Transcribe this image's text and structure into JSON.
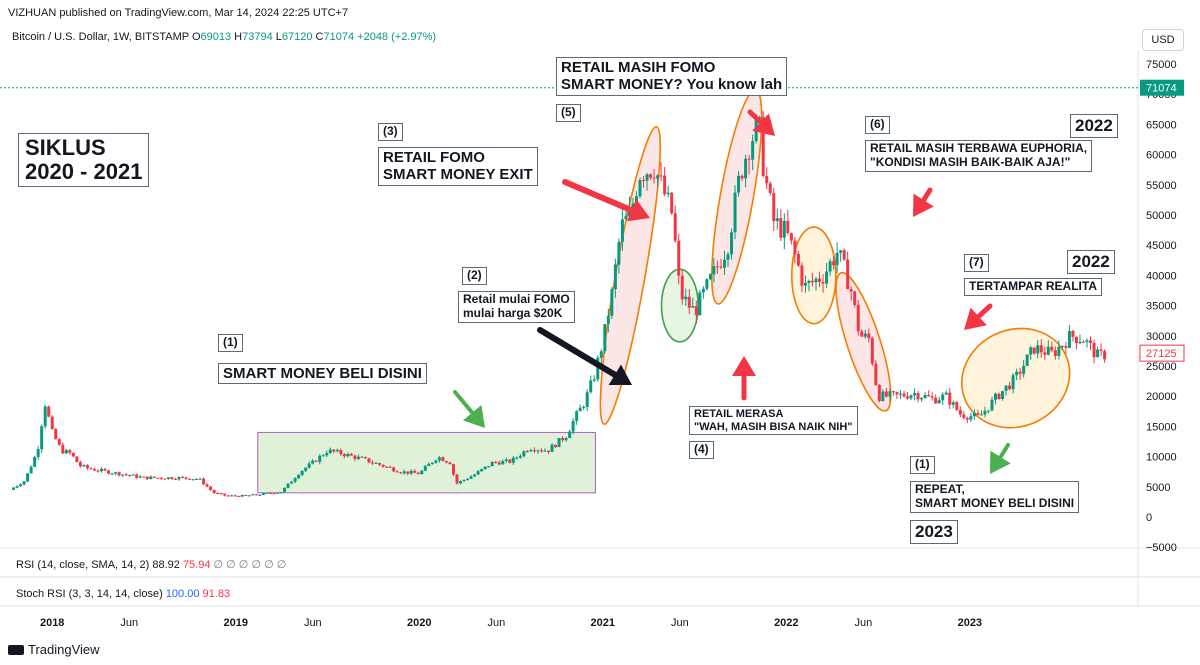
{
  "header": {
    "published": "VIZHUAN published on TradingView.com, Mar 14, 2024 22:25 UTC+7"
  },
  "legend": {
    "symbol": "Bitcoin / U.S. Dollar, 1W, BITSTAMP",
    "o_label": "O",
    "o": "69013",
    "h_label": "H",
    "h": "73794",
    "l_label": "L",
    "l": "67120",
    "c_label": "C",
    "c": "71074",
    "change": "+2048 (+2.97%)"
  },
  "currency": "USD",
  "price_labels": {
    "current": "71074",
    "last": "27125"
  },
  "indicators": {
    "rsi": {
      "label": "RSI (14, close, SMA, 14, 2)",
      "v1": "88.92",
      "v2": "75.94",
      "empties": "∅ ∅ ∅ ∅ ∅ ∅"
    },
    "stoch": {
      "label": "Stoch RSI (3, 3, 14, 14, close)",
      "v1": "100.00",
      "v2": "91.83"
    }
  },
  "footer": {
    "brand": "TradingView"
  },
  "annotations": {
    "siklus": "SIKLUS\n2020 - 2021",
    "n1": "(1)",
    "smart_money": "SMART MONEY BELI DISINI",
    "n2": "(2)",
    "retail_mulai": "Retail mulai FOMO\nmulai harga $20K",
    "n3": "(3)",
    "retail_fomo": "RETAIL FOMO\nSMART MONEY EXIT",
    "n4": "(4)",
    "retail_merasa": "RETAIL MERASA\n\"WAH, MASIH BISA NAIK NIH\"",
    "n5": "(5)",
    "retail_masih": "RETAIL MASIH FOMO\nSMART MONEY? You know lah",
    "n6": "(6)",
    "euphoria": "RETAIL MASIH TERBAWA EUPHORIA,\n\"KONDISI MASIH BAIK-BAIK AJA!\"",
    "y2022a": "2022",
    "n7": "(7)",
    "tertampar": "TERTAMPAR REALITA",
    "y2022b": "2022",
    "n1b": "(1)",
    "repeat": "REPEAT,\nSMART MONEY BELI DISINI",
    "y2023": "2023"
  },
  "chart_data": {
    "type": "candlestick",
    "title": "Bitcoin / U.S. Dollar, 1W, BITSTAMP",
    "ylabel": "USD",
    "ylim": [
      -5000,
      78000
    ],
    "y_ticks": [
      "75000",
      "70000",
      "65000",
      "60000",
      "55000",
      "50000",
      "45000",
      "40000",
      "35000",
      "30000",
      "25000",
      "20000",
      "15000",
      "10000",
      "5000",
      "0",
      "−5000"
    ],
    "x_ticks": [
      "2018",
      "Jun",
      "2019",
      "Jun",
      "2020",
      "Jun",
      "2021",
      "Jun",
      "2022",
      "Jun",
      "2023"
    ],
    "x_tick_years": [
      2018,
      2018.42,
      2019,
      2019.42,
      2020,
      2020.42,
      2021,
      2021.42,
      2022,
      2022.42,
      2023
    ],
    "x_range": [
      2017.77,
      2023.9
    ],
    "price_path": {
      "t": [
        2017.77,
        2017.85,
        2017.92,
        2017.96,
        2018.0,
        2018.05,
        2018.1,
        2018.15,
        2018.2,
        2018.3,
        2018.4,
        2018.5,
        2018.6,
        2018.7,
        2018.8,
        2018.88,
        2018.95,
        2019.05,
        2019.15,
        2019.25,
        2019.35,
        2019.42,
        2019.5,
        2019.58,
        2019.7,
        2019.8,
        2019.9,
        2020.0,
        2020.1,
        2020.17,
        2020.2,
        2020.3,
        2020.4,
        2020.5,
        2020.6,
        2020.7,
        2020.8,
        2020.85,
        2020.9,
        2020.95,
        2021.0,
        2021.05,
        2021.1,
        2021.15,
        2021.2,
        2021.28,
        2021.33,
        2021.38,
        2021.42,
        2021.47,
        2021.5,
        2021.55,
        2021.6,
        2021.68,
        2021.75,
        2021.8,
        2021.85,
        2021.88,
        2021.93,
        2022.0,
        2022.05,
        2022.1,
        2022.2,
        2022.28,
        2022.35,
        2022.4,
        2022.45,
        2022.5,
        2022.6,
        2022.7,
        2022.8,
        2022.87,
        2022.95,
        2023.05,
        2023.15,
        2023.25,
        2023.35,
        2023.45,
        2023.55,
        2023.62,
        2023.7,
        2023.75
      ],
      "p": [
        4500,
        6000,
        11000,
        19000,
        14000,
        11000,
        10500,
        8500,
        8000,
        7500,
        7000,
        6500,
        6500,
        6500,
        6300,
        4000,
        3500,
        3500,
        3800,
        4200,
        7500,
        9000,
        11000,
        10500,
        9500,
        8500,
        7500,
        7200,
        10000,
        9000,
        5500,
        7000,
        9000,
        9200,
        11500,
        11000,
        13500,
        16500,
        19000,
        23000,
        29000,
        37000,
        48000,
        50000,
        57000,
        58000,
        54000,
        50000,
        37000,
        35000,
        34000,
        37000,
        40000,
        45000,
        57000,
        62000,
        65000,
        57000,
        49000,
        47000,
        43000,
        38000,
        40000,
        44000,
        38000,
        30000,
        29500,
        20000,
        20000,
        20500,
        19500,
        20000,
        17000,
        16500,
        20000,
        23000,
        28000,
        27000,
        30000,
        29500,
        26500,
        27125
      ]
    },
    "boxes": [
      {
        "label": "accumulation",
        "x0": 2019.12,
        "x1": 2020.96,
        "y0": 4000,
        "y1": 14000
      }
    ],
    "ellipses": [
      {
        "cx": 2021.15,
        "cy": 40000,
        "rx": 0.08,
        "ry": 25000,
        "fill": "#fde2e2",
        "stroke": "#f57c00"
      },
      {
        "cx": 2021.42,
        "cy": 35000,
        "rx": 0.1,
        "ry": 6000,
        "fill": "#e3f3e1",
        "stroke": "#43a047"
      },
      {
        "cx": 2021.73,
        "cy": 53000,
        "rx": 0.09,
        "ry": 18000,
        "fill": "#fde2e2",
        "stroke": "#f57c00"
      },
      {
        "cx": 2022.15,
        "cy": 40000,
        "rx": 0.12,
        "ry": 8000,
        "fill": "#fff1d6",
        "stroke": "#f57c00"
      },
      {
        "cx": 2022.42,
        "cy": 29000,
        "rx": 0.09,
        "ry": 12000,
        "fill": "#fde2e2",
        "stroke": "#f57c00"
      },
      {
        "cx": 2023.25,
        "cy": 23000,
        "rx": 0.3,
        "ry": 8000,
        "fill": "#fff1d6",
        "stroke": "#f57c00"
      }
    ],
    "current_price": 71074,
    "last_price": 27125
  }
}
